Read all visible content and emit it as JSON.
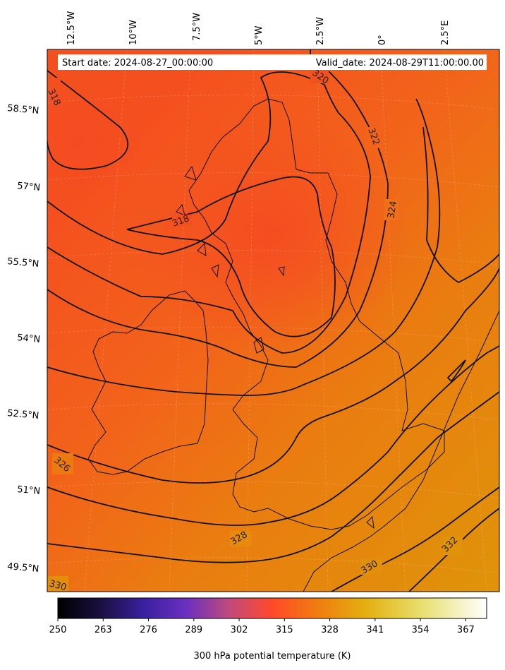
{
  "header": {
    "start_date": "Start date: 2024-08-27_00:00:00",
    "valid_date": "Valid_date: 2024-08-29T11:00:00.00"
  },
  "map": {
    "variable": "300 hPa potential temperature",
    "units": "K",
    "colormap": "CMRmap",
    "lon_labels": [
      "12.5°W",
      "10°W",
      "7.5°W",
      "5°W",
      "2.5°W",
      "0°",
      "2.5°E"
    ],
    "lat_labels": [
      "58.5°N",
      "57°N",
      "55.5°N",
      "54°N",
      "52.5°N",
      "51°N",
      "49.5°N"
    ],
    "contour_labels": [
      {
        "text": "318"
      },
      {
        "text": "318"
      },
      {
        "text": "320"
      },
      {
        "text": "322"
      },
      {
        "text": "324"
      },
      {
        "text": "326"
      },
      {
        "text": "328"
      },
      {
        "text": "330"
      },
      {
        "text": "330"
      },
      {
        "text": "332"
      }
    ]
  },
  "colorbar": {
    "label": "300 hPa potential temperature (K)",
    "ticks": [
      "250",
      "263",
      "276",
      "289",
      "302",
      "315",
      "328",
      "341",
      "354",
      "367"
    ],
    "min": 250,
    "max": 373
  },
  "colors": {
    "field_cold_core": "#f5521e",
    "field_warm_edge": "#e0900a",
    "contour": "#111111"
  }
}
